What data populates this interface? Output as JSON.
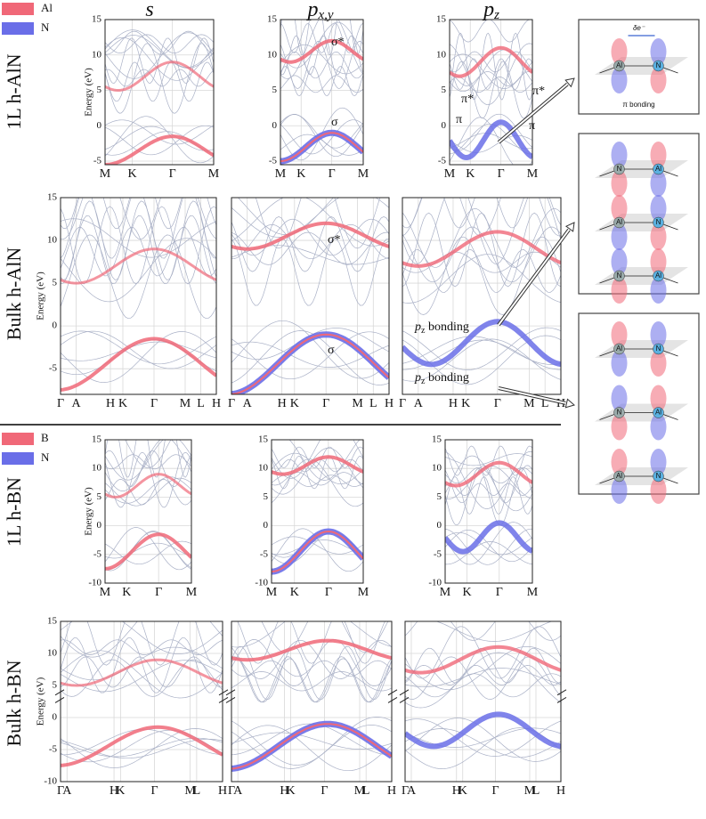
{
  "legend_top": [
    {
      "label": "Al",
      "color": "#f06878"
    },
    {
      "label": "N",
      "color": "#6a6ee8"
    }
  ],
  "legend_bottom": [
    {
      "label": "B",
      "color": "#f06878"
    },
    {
      "label": "N",
      "color": "#6a6ee8"
    }
  ],
  "column_headers": [
    {
      "base": "s",
      "sub": ""
    },
    {
      "base": "p",
      "sub": "x,y"
    },
    {
      "base": "p",
      "sub": "z"
    }
  ],
  "rows": [
    {
      "label": "1L h-AlN",
      "y_label": "Energy (eV)",
      "ylim": [
        -5.5,
        15
      ],
      "yticks": [
        15,
        10,
        5,
        0,
        -5
      ],
      "kpoints": [
        "M",
        "K",
        "Γ",
        "M"
      ],
      "annotations": [
        {
          "text": "σ*"
        },
        {
          "text": "σ"
        },
        {
          "text": "π*"
        },
        {
          "text": "π"
        },
        {
          "text": "π*"
        },
        {
          "text": "π"
        }
      ]
    },
    {
      "label": "Bulk h-AlN",
      "y_label": "Energy (eV)",
      "ylim": [
        -8,
        15
      ],
      "yticks": [
        15,
        10,
        5,
        0,
        -5
      ],
      "kpoints": [
        "Γ",
        "A",
        "H",
        "K",
        "Γ",
        "M",
        "L",
        "H"
      ],
      "annotations": [
        {
          "text": "σ*"
        },
        {
          "text": "σ"
        },
        {
          "text": "p",
          "sub": "z",
          "rest": " bonding"
        },
        {
          "text": "p",
          "sub": "z",
          "rest": " bonding"
        }
      ]
    },
    {
      "label": "1L h-BN",
      "y_label": "Energy (eV)",
      "ylim": [
        -10,
        15
      ],
      "yticks": [
        15,
        10,
        5,
        0,
        -5,
        -10
      ],
      "kpoints": [
        "M",
        "K",
        "Γ",
        "M"
      ],
      "annotations": []
    },
    {
      "label": "Bulk h-BN",
      "y_label": "Energy (eV)",
      "ylim": [
        -10,
        15
      ],
      "yticks": [
        15,
        10,
        5,
        0,
        -5,
        -10
      ],
      "kpoints": [
        "Γ",
        "A",
        "H",
        "K",
        "Γ",
        "M",
        "L",
        "H"
      ],
      "annotations": []
    }
  ],
  "schematics": [
    {
      "labels": [
        "δe⁻",
        "Al",
        "N",
        "π bonding"
      ]
    },
    {
      "labels": [
        "Al",
        "N"
      ]
    },
    {
      "labels": [
        "Al",
        "N"
      ]
    }
  ]
}
